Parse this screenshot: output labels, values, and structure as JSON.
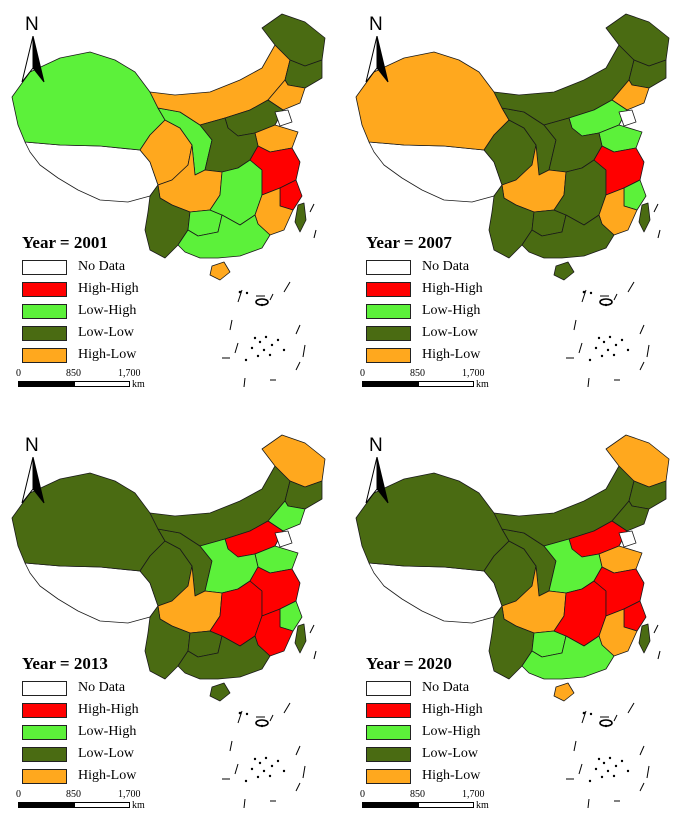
{
  "north_label": "N",
  "scale": {
    "ticks": [
      "0",
      "850",
      "1,700"
    ],
    "unit": "km"
  },
  "legend": [
    {
      "key": "no_data",
      "label": "No Data",
      "color": "#ffffff"
    },
    {
      "key": "high_high",
      "label": "High-High",
      "color": "#ff0000"
    },
    {
      "key": "low_high",
      "label": "Low-High",
      "color": "#5cf13a"
    },
    {
      "key": "low_low",
      "label": "Low-Low",
      "color": "#4a6b12"
    },
    {
      "key": "high_low",
      "label": "High-Low",
      "color": "#ffa81e"
    }
  ],
  "panels": [
    {
      "title": "Year = 2001",
      "regions": {
        "xinjiang": "low_high",
        "xizang": "no_data",
        "qinghai": "high_low",
        "gansu": "low_high",
        "inner_mongolia": "high_low",
        "heilongjiang": "low_low",
        "jilin": "low_low",
        "liaoning": "high_low",
        "north_china": "low_low",
        "shandong": "high_low",
        "central_north": "low_low",
        "sichuan": "high_low",
        "yunnan": "low_low",
        "guizhou": "low_high",
        "central_south": "low_high",
        "jiangsu_anhui": "high_high",
        "zhejiang": "high_high",
        "fujian": "high_low",
        "guangdong_guangxi": "low_high",
        "hainan": "high_low",
        "taiwan": "low_low"
      }
    },
    {
      "title": "Year = 2007",
      "regions": {
        "xinjiang": "high_low",
        "xizang": "no_data",
        "qinghai": "low_low",
        "gansu": "low_low",
        "inner_mongolia": "low_low",
        "heilongjiang": "low_low",
        "jilin": "low_low",
        "liaoning": "high_low",
        "north_china": "low_high",
        "shandong": "low_high",
        "central_north": "low_low",
        "sichuan": "high_low",
        "yunnan": "low_low",
        "guizhou": "low_low",
        "central_south": "low_low",
        "jiangsu_anhui": "high_high",
        "zhejiang": "low_high",
        "fujian": "high_low",
        "guangdong_guangxi": "low_low",
        "hainan": "low_low",
        "taiwan": "low_low"
      }
    },
    {
      "title": "Year = 2013",
      "regions": {
        "xinjiang": "low_low",
        "xizang": "no_data",
        "qinghai": "low_low",
        "gansu": "low_low",
        "inner_mongolia": "low_low",
        "heilongjiang": "high_low",
        "jilin": "low_low",
        "liaoning": "low_high",
        "north_china": "high_high",
        "shandong": "low_high",
        "central_north": "low_high",
        "sichuan": "high_low",
        "yunnan": "low_low",
        "guizhou": "low_low",
        "central_south": "high_high",
        "jiangsu_anhui": "high_high",
        "zhejiang": "low_high",
        "fujian": "high_high",
        "guangdong_guangxi": "low_low",
        "hainan": "low_low",
        "taiwan": "low_low"
      }
    },
    {
      "title": "Year = 2020",
      "regions": {
        "xinjiang": "low_low",
        "xizang": "no_data",
        "qinghai": "low_low",
        "gansu": "low_low",
        "inner_mongolia": "low_low",
        "heilongjiang": "high_low",
        "jilin": "low_low",
        "liaoning": "low_low",
        "north_china": "high_high",
        "shandong": "high_low",
        "central_north": "low_high",
        "sichuan": "high_low",
        "yunnan": "low_low",
        "guizhou": "low_high",
        "central_south": "high_high",
        "jiangsu_anhui": "high_high",
        "zhejiang": "high_high",
        "fujian": "high_low",
        "guangdong_guangxi": "low_high",
        "hainan": "high_low",
        "taiwan": "low_low"
      }
    }
  ]
}
